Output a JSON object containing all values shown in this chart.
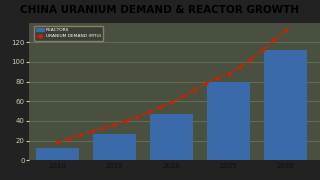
{
  "title": "CHINA URANIUM DEMAND & REACTOR GROWTH",
  "title_fontsize": 7.5,
  "title_bg": "#f0ece0",
  "chart_bg": "#4a5040",
  "bar_color": "#3a6aaa",
  "line_color": "#cc2200",
  "bar_x": [
    2010,
    2015,
    2020,
    2025,
    2030
  ],
  "bar_width": 3.8,
  "bar_heights": [
    12,
    27,
    47,
    80,
    112
  ],
  "line_x": [
    2010,
    2011,
    2012,
    2013,
    2014,
    2015,
    2016,
    2017,
    2018,
    2019,
    2020,
    2021,
    2022,
    2023,
    2024,
    2025,
    2026,
    2027,
    2028,
    2029,
    2030
  ],
  "line_y": [
    18,
    22,
    26,
    30,
    33,
    36,
    40,
    44,
    49,
    54,
    59,
    65,
    71,
    78,
    84,
    88,
    95,
    103,
    112,
    122,
    132
  ],
  "xlim": [
    2007.5,
    2033
  ],
  "ylim": [
    0,
    140
  ],
  "yticks": [
    0,
    20,
    40,
    60,
    80,
    100,
    120
  ],
  "xticks": [
    2010,
    2015,
    2020,
    2025,
    2030
  ],
  "legend_label_bar": "REACTORS",
  "legend_label_line": "URANIUM DEMAND (MTU)",
  "grid_color": "#6a7a5a",
  "tick_color": "#ccccaa",
  "xaxis_bg": "#b8a84a",
  "outer_bg": "#222222",
  "border_color": "#888866"
}
